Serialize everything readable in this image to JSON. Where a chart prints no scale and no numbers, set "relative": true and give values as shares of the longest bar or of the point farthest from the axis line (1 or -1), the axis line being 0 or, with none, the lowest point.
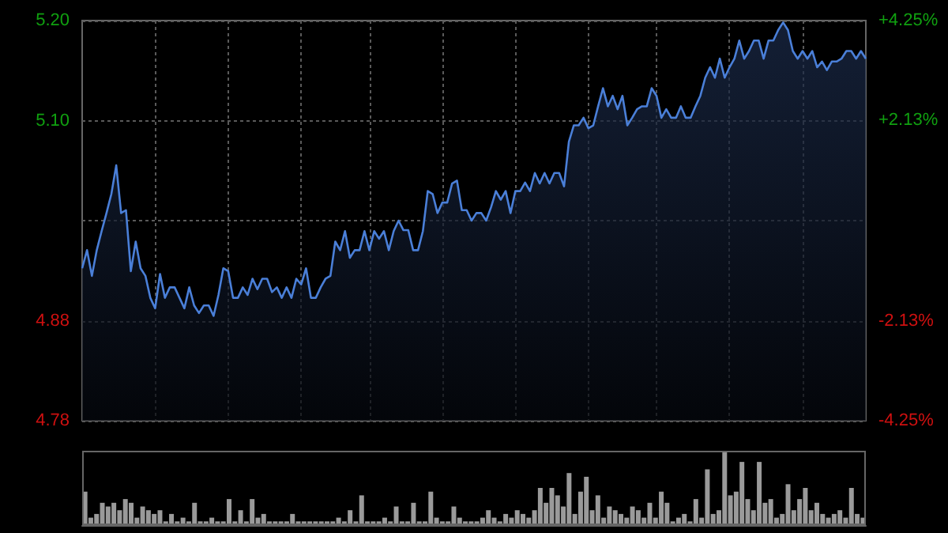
{
  "chart_data": [
    {
      "type": "area",
      "categories": [
        null,
        null,
        null,
        null,
        null,
        null,
        null,
        null,
        null,
        null,
        null,
        null,
        null,
        null,
        null,
        null,
        null,
        null,
        null,
        null,
        null,
        null,
        null,
        null,
        null,
        null,
        null,
        null,
        null,
        null,
        null,
        null,
        null,
        null,
        null,
        null,
        null,
        null,
        null,
        null,
        null,
        null,
        null,
        null,
        null,
        null,
        null,
        null,
        null,
        null,
        null,
        null,
        null,
        null,
        null,
        null,
        null,
        null,
        null,
        null,
        null,
        null,
        null,
        null,
        null,
        null,
        null,
        null,
        null,
        null,
        null,
        null,
        null,
        null,
        null,
        null,
        null,
        null,
        null,
        null,
        null,
        null,
        null,
        null,
        null,
        null,
        null,
        null,
        null,
        null,
        null,
        null,
        null,
        null,
        null,
        null,
        null,
        null,
        null,
        null,
        null,
        null,
        null,
        null,
        null,
        null,
        null,
        null,
        null,
        null,
        null,
        null,
        null,
        null,
        null,
        null,
        null,
        null,
        null,
        null,
        null,
        null,
        null,
        null,
        null,
        null,
        null,
        null,
        null,
        null,
        null,
        null,
        null,
        null,
        null,
        null,
        null,
        null,
        null,
        null,
        null,
        null,
        null,
        null,
        null,
        null,
        null,
        null,
        null,
        null,
        null,
        null,
        null,
        null,
        null,
        null,
        null,
        null,
        null,
        null,
        null,
        null
      ],
      "series": [
        {
          "color": "#4a7fd8",
          "values": [
            4.94,
            4.959,
            4.932,
            4.959,
            4.979,
            4.998,
            5.018,
            5.048,
            4.998,
            5.001,
            4.937,
            4.968,
            4.94,
            4.932,
            4.909,
            4.898,
            4.934,
            4.909,
            4.92,
            4.92,
            4.909,
            4.898,
            4.92,
            4.901,
            4.893,
            4.901,
            4.901,
            4.89,
            4.912,
            4.94,
            4.937,
            4.909,
            4.909,
            4.92,
            4.912,
            4.929,
            4.918,
            4.929,
            4.929,
            4.915,
            4.92,
            4.909,
            4.92,
            4.909,
            4.929,
            4.923,
            4.94,
            4.909,
            4.909,
            4.92,
            4.929,
            4.932,
            4.968,
            4.959,
            4.979,
            4.951,
            4.959,
            4.959,
            4.979,
            4.959,
            4.979,
            4.971,
            4.979,
            4.959,
            4.979,
            4.99,
            4.98,
            4.98,
            4.959,
            4.959,
            4.979,
            5.021,
            5.018,
            4.998,
            5.009,
            5.009,
            5.029,
            5.032,
            5.001,
            5.001,
            4.99,
            4.998,
            4.998,
            4.99,
            5.004,
            5.021,
            5.012,
            5.021,
            4.998,
            5.021,
            5.021,
            5.03,
            5.021,
            5.04,
            5.029,
            5.04,
            5.029,
            5.04,
            5.04,
            5.026,
            5.073,
            5.09,
            5.09,
            5.098,
            5.087,
            5.09,
            5.11,
            5.129,
            5.11,
            5.121,
            5.107,
            5.121,
            5.09,
            5.098,
            5.107,
            5.11,
            5.11,
            5.129,
            5.121,
            5.098,
            5.107,
            5.098,
            5.098,
            5.11,
            5.098,
            5.098,
            5.11,
            5.121,
            5.14,
            5.151,
            5.14,
            5.16,
            5.14,
            5.151,
            5.16,
            5.179,
            5.16,
            5.168,
            5.179,
            5.179,
            5.16,
            5.179,
            5.179,
            5.19,
            5.198,
            5.19,
            5.168,
            5.16,
            5.168,
            5.16,
            5.168,
            5.151,
            5.157,
            5.148,
            5.157,
            5.157,
            5.16,
            5.168,
            5.168,
            5.16,
            5.168,
            5.16
          ]
        }
      ],
      "ylim": [
        4.78,
        5.2
      ],
      "yticks": [
        {
          "value": 5.2,
          "label": "5.20"
        },
        {
          "value": 5.095,
          "label": "5.10"
        },
        {
          "value": 4.99,
          "label": null
        },
        {
          "value": 4.885,
          "label": "4.88"
        },
        4.78
      ],
      "y2lim": [
        -4.25,
        4.25
      ],
      "y2ticks": [
        {
          "value": 4.25,
          "label": "+4.25%"
        },
        {
          "value": 2.13,
          "label": "+2.13%"
        },
        {
          "value": -2.13,
          "label": "-2.13%"
        },
        {
          "value": -4.25,
          "label": "-4.25%"
        }
      ],
      "grid": true,
      "tick_labels": "y",
      "line_style": "solid"
    },
    {
      "type": "bar",
      "relative": true,
      "categories": [
        null,
        null,
        null,
        null,
        null,
        null,
        null,
        null,
        null,
        null,
        null,
        null,
        null,
        null,
        null,
        null,
        null,
        null,
        null,
        null,
        null,
        null,
        null,
        null,
        null,
        null,
        null,
        null,
        null,
        null,
        null,
        null,
        null,
        null,
        null,
        null,
        null,
        null,
        null,
        null,
        null,
        null,
        null,
        null,
        null,
        null,
        null,
        null,
        null,
        null,
        null,
        null,
        null,
        null,
        null,
        null,
        null,
        null,
        null,
        null,
        null,
        null,
        null,
        null,
        null,
        null,
        null,
        null,
        null,
        null,
        null,
        null,
        null,
        null,
        null,
        null,
        null,
        null,
        null,
        null,
        null,
        null,
        null,
        null,
        null,
        null,
        null,
        null,
        null,
        null,
        null,
        null,
        null,
        null,
        null,
        null,
        null,
        null,
        null,
        null,
        null,
        null,
        null,
        null,
        null,
        null,
        null,
        null,
        null,
        null,
        null,
        null,
        null,
        null,
        null,
        null,
        null,
        null,
        null,
        null,
        null,
        null,
        null,
        null,
        null,
        null,
        null,
        null,
        null,
        null,
        null,
        null,
        null,
        null,
        null,
        null
      ],
      "series": [
        {
          "color": "#9a9a9a",
          "values": [
            0.45,
            0.1,
            0.15,
            0.3,
            0.25,
            0.3,
            0.2,
            0.35,
            0.3,
            0.1,
            0.25,
            0.2,
            0.15,
            0.2,
            0.05,
            0.15,
            0.05,
            0.1,
            0.05,
            0.3,
            0.05,
            0.05,
            0.1,
            0.05,
            0.05,
            0.35,
            0.05,
            0.2,
            0.05,
            0.35,
            0.1,
            0.15,
            0.05,
            0.05,
            0.05,
            0.05,
            0.15,
            0.05,
            0.05,
            0.05,
            0.05,
            0.05,
            0.05,
            0.05,
            0.1,
            0.05,
            0.2,
            0.05,
            0.4,
            0.05,
            0.05,
            0.05,
            0.1,
            0.05,
            0.25,
            0.05,
            0.05,
            0.3,
            0.05,
            0.05,
            0.45,
            0.1,
            0.05,
            0.05,
            0.25,
            0.1,
            0.05,
            0.05,
            0.05,
            0.1,
            0.2,
            0.1,
            0.05,
            0.15,
            0.1,
            0.2,
            0.15,
            0.1,
            0.2,
            0.5,
            0.3,
            0.5,
            0.4,
            0.25,
            0.7,
            0.15,
            0.45,
            0.65,
            0.2,
            0.4,
            0.1,
            0.25,
            0.2,
            0.15,
            0.1,
            0.25,
            0.2,
            0.1,
            0.3,
            0.1,
            0.45,
            0.3,
            0.05,
            0.1,
            0.15,
            0.05,
            0.35,
            0.1,
            0.75,
            0.15,
            0.2,
            1.0,
            0.4,
            0.45,
            0.85,
            0.35,
            0.2,
            0.85,
            0.3,
            0.35,
            0.1,
            0.15,
            0.55,
            0.2,
            0.35,
            0.5,
            0.2,
            0.3,
            0.15,
            0.1,
            0.15,
            0.2,
            0.1,
            0.5,
            0.15,
            0.1
          ]
        }
      ],
      "grid": false,
      "tick_labels": false
    }
  ]
}
